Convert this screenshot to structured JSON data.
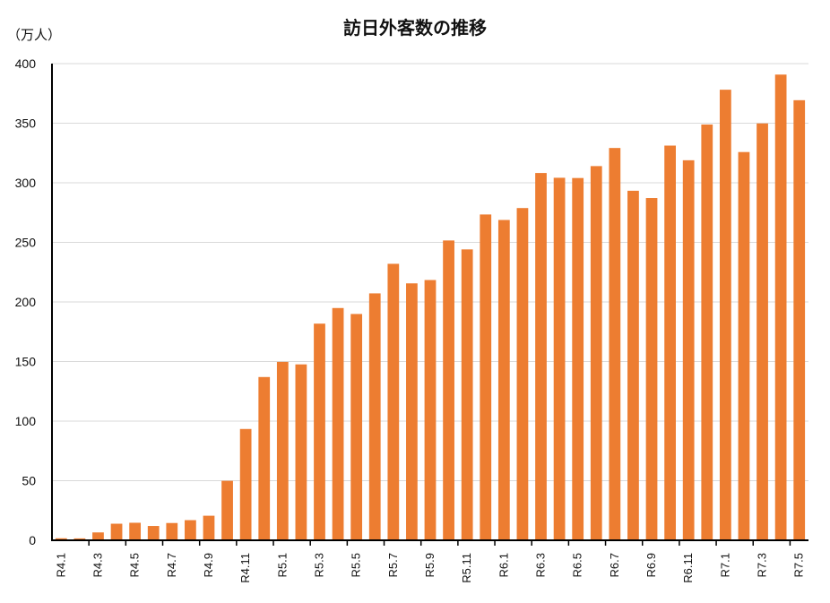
{
  "chart_data": {
    "type": "bar",
    "title": "訪日外客数の推移",
    "ylabel": "（万人）",
    "xlabel": "",
    "ylim": [
      0,
      400
    ],
    "yticks": [
      0,
      50,
      100,
      150,
      200,
      250,
      300,
      350,
      400
    ],
    "grid": true,
    "bar_color": "#ED7D31",
    "categories": [
      "R4.1",
      "R4.2",
      "R4.3",
      "R4.4",
      "R4.5",
      "R4.6",
      "R4.7",
      "R4.8",
      "R4.9",
      "R4.10",
      "R4.11",
      "R4.12",
      "R5.1",
      "R5.2",
      "R5.3",
      "R5.4",
      "R5.5",
      "R5.6",
      "R5.7",
      "R5.8",
      "R5.9",
      "R5.10",
      "R5.11",
      "R5.12",
      "R6.1",
      "R6.2",
      "R6.3",
      "R6.4",
      "R6.5",
      "R6.6",
      "R6.7",
      "R6.8",
      "R6.9",
      "R6.10",
      "R6.11",
      "R6.12",
      "R7.1",
      "R7.2",
      "R7.3",
      "R7.4",
      "R7.5"
    ],
    "tick_labels": [
      "R4.1",
      "R4.3",
      "R4.5",
      "R4.7",
      "R4.9",
      "R4.11",
      "R5.1",
      "R5.3",
      "R5.5",
      "R5.7",
      "R5.9",
      "R5.11",
      "R6.1",
      "R6.3",
      "R6.5",
      "R6.7",
      "R6.9",
      "R6.11",
      "R7.1",
      "R7.3",
      "R7.5"
    ],
    "values": [
      1.7,
      1.6,
      6.6,
      13.9,
      14.7,
      12.0,
      14.5,
      16.9,
      20.6,
      49.9,
      93.4,
      137.0,
      149.7,
      147.6,
      181.8,
      194.9,
      189.9,
      207.2,
      232.0,
      215.6,
      218.4,
      251.6,
      244.1,
      273.4,
      268.8,
      278.8,
      308.2,
      304.2,
      304.0,
      314.0,
      329.2,
      293.3,
      287.2,
      331.2,
      318.9,
      348.9,
      378.1,
      325.8,
      349.8,
      390.8,
      369.3
    ]
  }
}
